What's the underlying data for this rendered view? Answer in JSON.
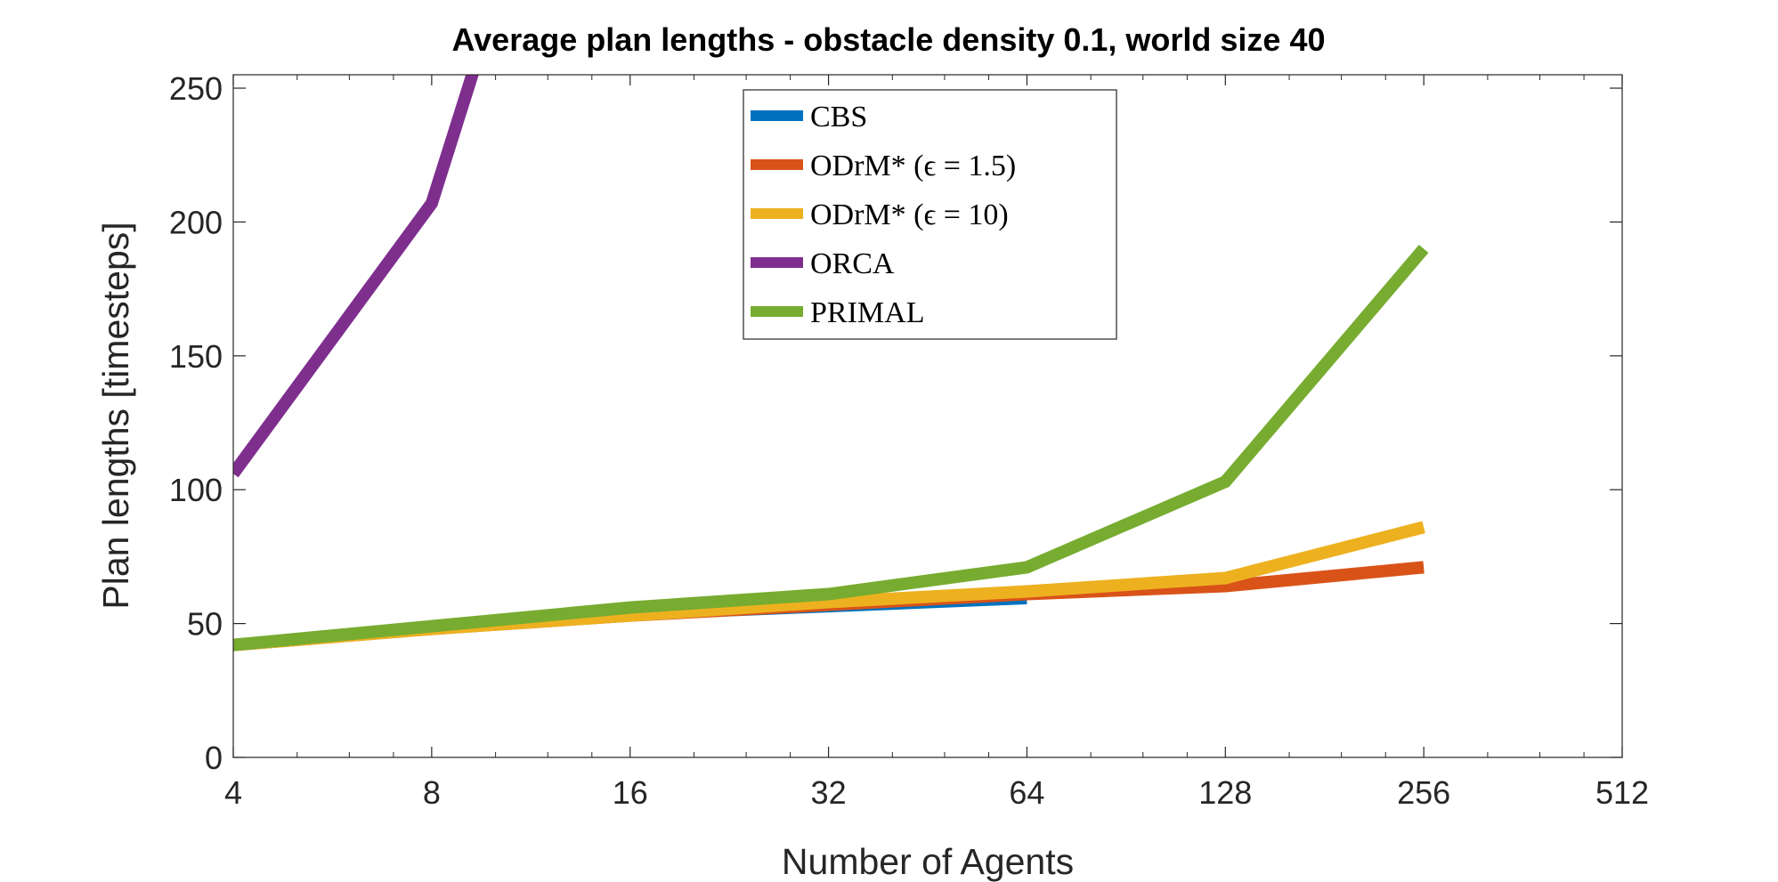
{
  "chart_data": {
    "type": "line",
    "title": "Average plan lengths - obstacle density 0.1, world size 40",
    "xlabel": "Number of Agents",
    "ylabel": "Plan lengths [timesteps]",
    "xscale": "log2",
    "xlim": [
      4,
      512
    ],
    "ylim": [
      0,
      255
    ],
    "xticks": [
      4,
      8,
      16,
      32,
      64,
      128,
      256,
      512
    ],
    "yticks": [
      0,
      50,
      100,
      150,
      200,
      250
    ],
    "grid": false,
    "legend_position": "top-center",
    "series": [
      {
        "name": "CBS",
        "color": "#0072BD",
        "x": [
          4,
          8,
          16,
          32,
          64
        ],
        "y": [
          42,
          48,
          52,
          55,
          58
        ]
      },
      {
        "name": "ODrM* (ϵ = 1.5)",
        "color": "#D95319",
        "x": [
          4,
          8,
          16,
          32,
          64,
          128,
          256
        ],
        "y": [
          42,
          48,
          53,
          57,
          61,
          64,
          71
        ]
      },
      {
        "name": "ODrM* (ϵ = 10)",
        "color": "#EDB120",
        "x": [
          4,
          8,
          16,
          32,
          64,
          128,
          256
        ],
        "y": [
          42,
          48,
          53,
          58,
          62,
          67,
          86
        ]
      },
      {
        "name": "ORCA",
        "color": "#7E2F8E",
        "x": [
          4,
          8,
          9.3
        ],
        "y": [
          106,
          207,
          258
        ]
      },
      {
        "name": "PRIMAL",
        "color": "#77AC30",
        "x": [
          4,
          8,
          16,
          32,
          64,
          128,
          256
        ],
        "y": [
          42,
          49,
          56,
          61,
          71,
          103,
          190
        ]
      }
    ]
  }
}
